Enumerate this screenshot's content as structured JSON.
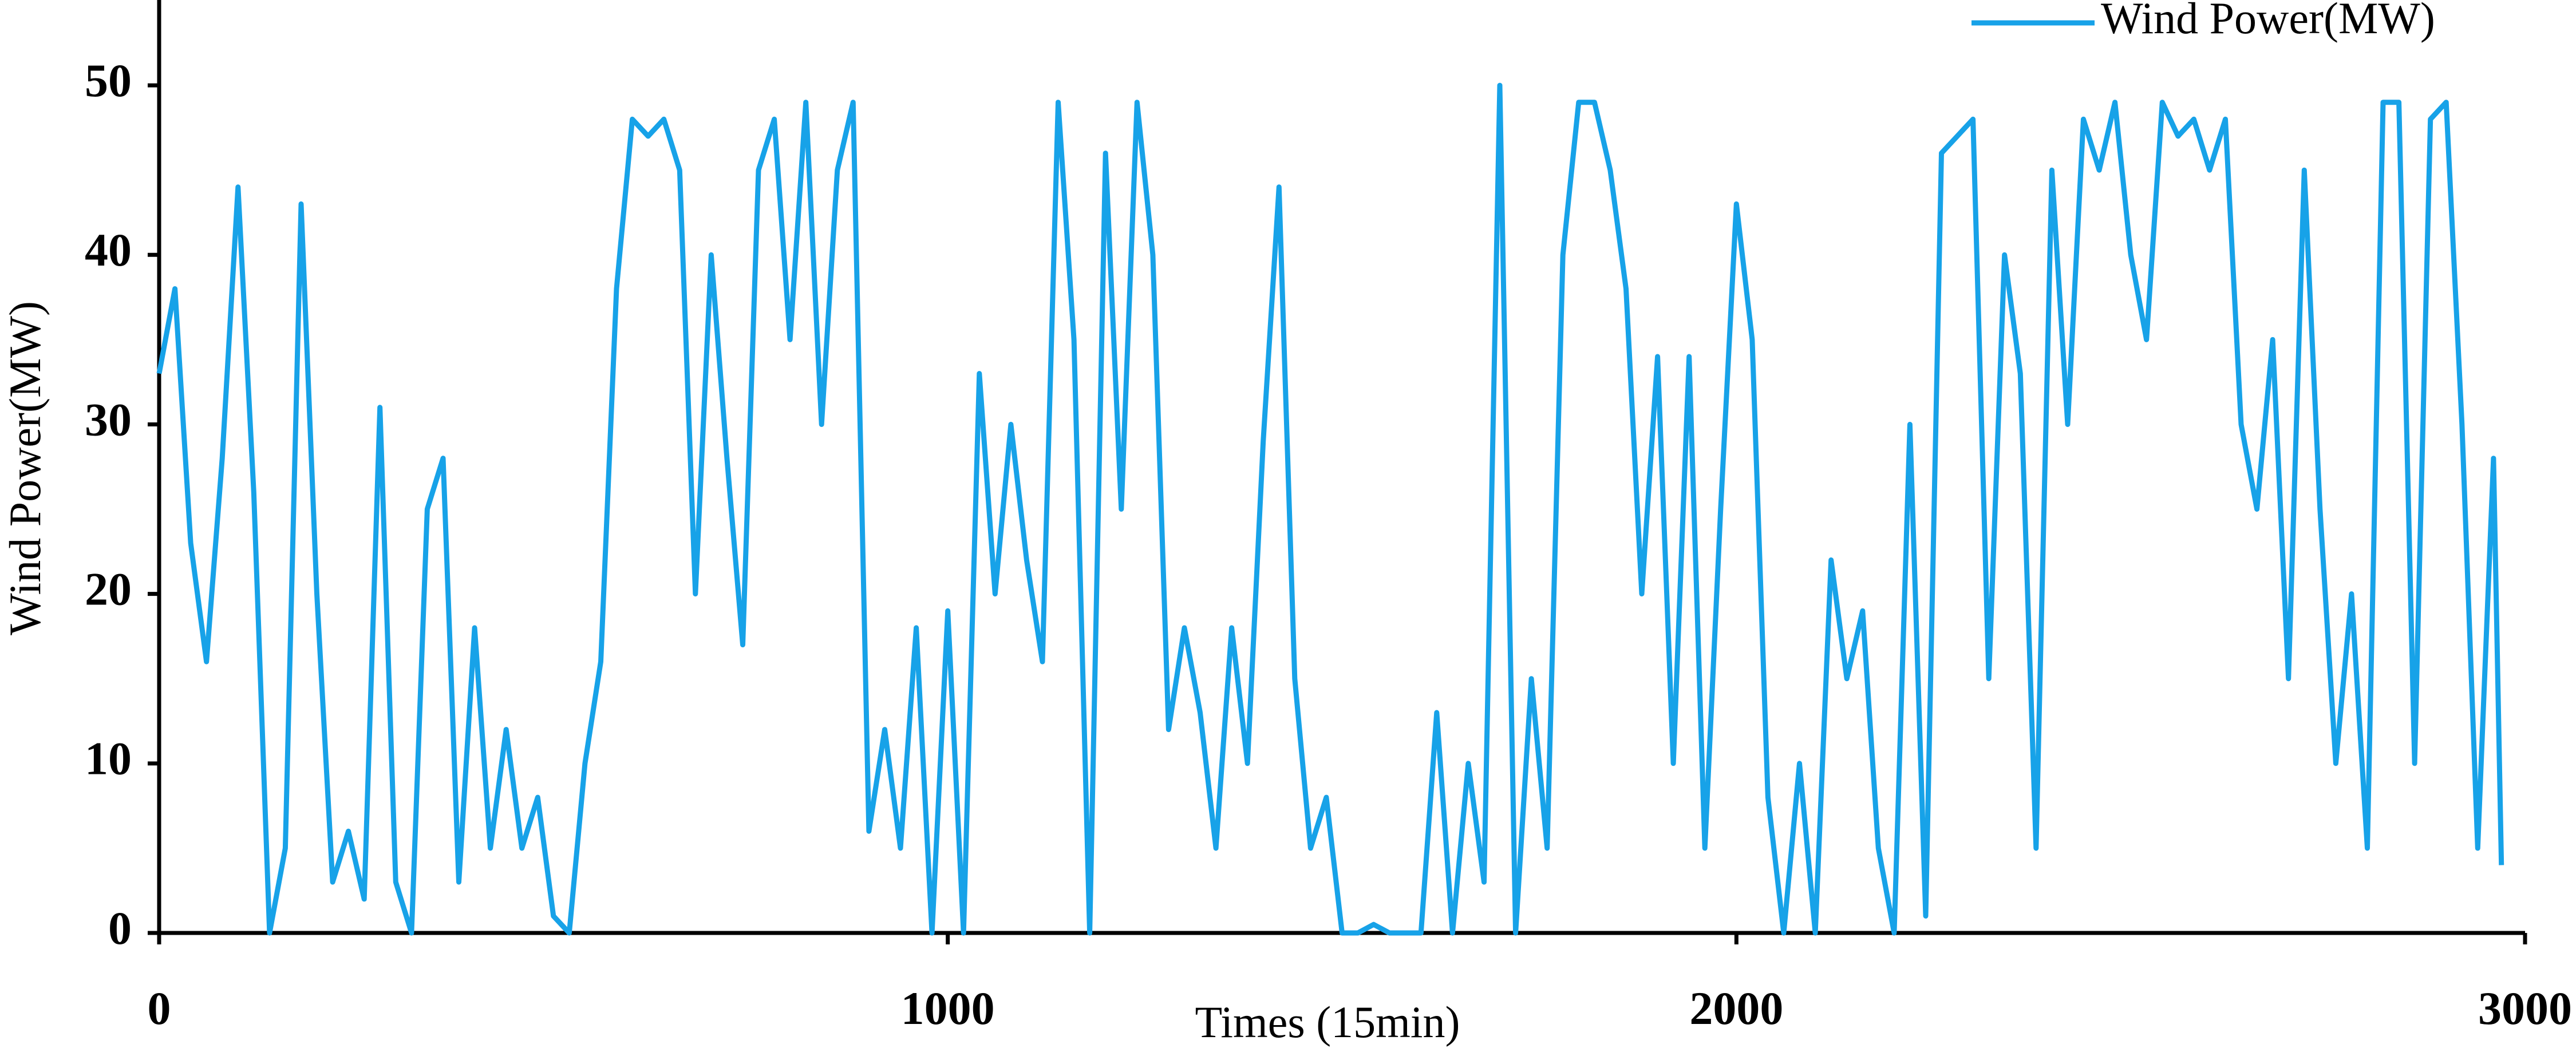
{
  "chart_data": {
    "type": "line",
    "x_label": "Times (15min)",
    "y_label": "Wind Power(MW)",
    "x": [
      0,
      20,
      40,
      60,
      80,
      100,
      120,
      140,
      160,
      180,
      200,
      220,
      240,
      260,
      280,
      300,
      320,
      340,
      360,
      380,
      400,
      420,
      440,
      460,
      480,
      500,
      520,
      540,
      560,
      580,
      600,
      620,
      640,
      660,
      680,
      700,
      720,
      740,
      760,
      780,
      800,
      820,
      840,
      860,
      880,
      900,
      920,
      940,
      960,
      980,
      1000,
      1020,
      1040,
      1060,
      1080,
      1100,
      1120,
      1140,
      1160,
      1180,
      1200,
      1220,
      1240,
      1260,
      1280,
      1300,
      1320,
      1340,
      1360,
      1380,
      1400,
      1420,
      1440,
      1460,
      1480,
      1500,
      1520,
      1540,
      1560,
      1580,
      1600,
      1620,
      1640,
      1660,
      1680,
      1700,
      1720,
      1740,
      1760,
      1780,
      1800,
      1820,
      1840,
      1860,
      1880,
      1900,
      1920,
      1940,
      1960,
      1980,
      2000,
      2020,
      2040,
      2060,
      2080,
      2100,
      2120,
      2140,
      2160,
      2180,
      2200,
      2220,
      2240,
      2260,
      2280,
      2300,
      2320,
      2340,
      2360,
      2380,
      2400,
      2420,
      2440,
      2460,
      2480,
      2500,
      2520,
      2540,
      2560,
      2580,
      2600,
      2620,
      2640,
      2660,
      2680,
      2700,
      2720,
      2740,
      2760,
      2780,
      2800,
      2820,
      2840,
      2860,
      2880,
      2900,
      2920,
      2940,
      2960,
      2970
    ],
    "series": [
      {
        "name": "Wind Power(MW)",
        "color": "#17a2e8",
        "values": [
          33,
          38,
          23,
          16,
          28,
          44,
          26,
          0,
          5,
          43,
          20,
          3,
          6,
          2,
          31,
          3,
          0,
          25,
          28,
          3,
          18,
          5,
          12,
          5,
          8,
          1,
          0,
          10,
          16,
          38,
          48,
          47,
          48,
          45,
          20,
          40,
          28,
          17,
          45,
          48,
          35,
          49,
          30,
          45,
          49,
          6,
          12,
          5,
          18,
          0,
          19,
          0,
          33,
          20,
          30,
          22,
          16,
          49,
          35,
          0,
          46,
          25,
          49,
          40,
          12,
          18,
          13,
          5,
          18,
          10,
          29,
          44,
          15,
          5,
          8,
          0,
          0,
          0.5,
          0,
          0,
          0,
          13,
          0,
          10,
          3,
          50,
          0,
          15,
          5,
          40,
          49,
          49,
          45,
          38,
          20,
          34,
          10,
          34,
          5,
          25,
          43,
          35,
          8,
          0,
          10,
          0,
          22,
          15,
          19,
          5,
          0,
          30,
          1,
          46,
          47,
          48,
          15,
          40,
          33,
          5,
          45,
          30,
          48,
          45,
          49,
          40,
          35,
          49,
          47,
          48,
          45,
          48,
          30,
          25,
          35,
          15,
          45,
          25,
          10,
          20,
          5,
          49,
          49,
          10,
          48,
          49,
          30,
          5,
          28,
          4
        ]
      }
    ],
    "xlim": [
      0,
      3000
    ],
    "xticks": [
      0,
      1000,
      2000,
      3000
    ],
    "ylim": [
      0,
      55
    ],
    "yticks": [
      0,
      10,
      20,
      30,
      40,
      50
    ],
    "grid": false,
    "legend": "top-right"
  }
}
